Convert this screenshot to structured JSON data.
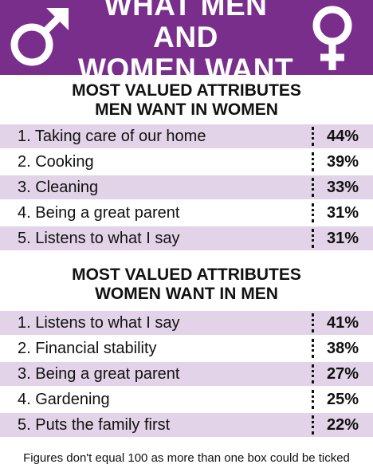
{
  "header": {
    "title_line1": "WHAT MEN AND",
    "title_line2": "WOMEN WANT",
    "left_icon": "male-symbol-icon",
    "right_icon": "female-symbol-icon",
    "bg_color": "#7a2e8c"
  },
  "chart_data": [
    {
      "type": "table",
      "title_line1": "MOST VALUED ATTRIBUTES",
      "title_line2": "MEN WANT IN WOMEN",
      "rows": [
        {
          "label": "1.  Taking care of our home",
          "value": "44%"
        },
        {
          "label": "2. Cooking",
          "value": "39%"
        },
        {
          "label": "3. Cleaning",
          "value": "33%"
        },
        {
          "label": "4. Being a great parent",
          "value": "31%"
        },
        {
          "label": "5. Listens to what I say",
          "value": "31%"
        }
      ]
    },
    {
      "type": "table",
      "title_line1": "MOST VALUED ATTRIBUTES",
      "title_line2": "WOMEN WANT IN MEN",
      "rows": [
        {
          "label": "1.  Listens to what I say",
          "value": "41%"
        },
        {
          "label": "2. Financial stability",
          "value": "38%"
        },
        {
          "label": "3. Being a great parent",
          "value": "27%"
        },
        {
          "label": "4. Gardening",
          "value": "25%"
        },
        {
          "label": "5. Puts the family first",
          "value": "22%"
        }
      ]
    }
  ],
  "footnote": "Figures don't equal 100 as more than one box could be ticked",
  "colors": {
    "row_shade": "#e3d3e8",
    "header": "#7a2e8c"
  }
}
